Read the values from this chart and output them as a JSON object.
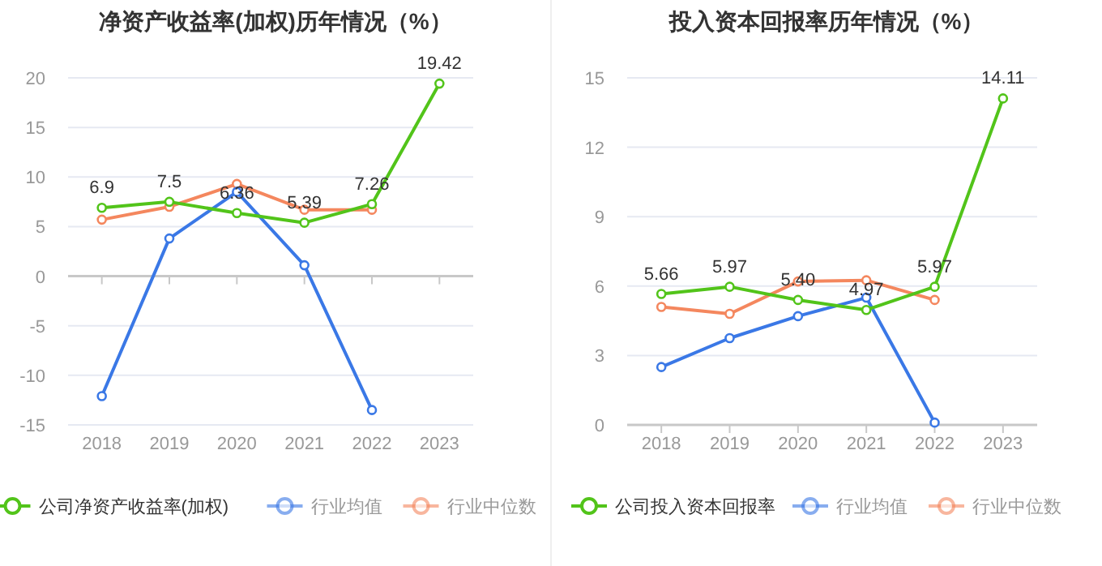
{
  "chart_data": [
    {
      "type": "line",
      "title": "净资产收益率(加权)历年情况（%）",
      "categories": [
        "2018",
        "2019",
        "2020",
        "2021",
        "2022",
        "2023"
      ],
      "ylim": [
        -15,
        20
      ],
      "yticks": [
        -15,
        -10,
        -5,
        0,
        5,
        10,
        15,
        20
      ],
      "grid": "y",
      "legend": "bottom",
      "marker": "circle",
      "line_style": "solid",
      "series": [
        {
          "name": "公司净资产收益率(加权)",
          "color": "#52c41a",
          "values": [
            6.9,
            7.5,
            6.36,
            5.39,
            7.26,
            19.42
          ],
          "value_labels": [
            "6.9",
            "7.5",
            "6.36",
            "5.39",
            "7.26",
            "19.42"
          ]
        },
        {
          "name": "行业均值",
          "color": "#3a78e6",
          "values": [
            -12.1,
            3.8,
            8.5,
            1.1,
            -13.5,
            null
          ]
        },
        {
          "name": "行业中位数",
          "color": "#f4875e",
          "values": [
            5.7,
            7.0,
            9.3,
            6.7,
            6.7,
            null
          ]
        }
      ]
    },
    {
      "type": "line",
      "title": "投入资本回报率历年情况（%）",
      "categories": [
        "2018",
        "2019",
        "2020",
        "2021",
        "2022",
        "2023"
      ],
      "ylim": [
        0,
        15
      ],
      "yticks": [
        0,
        3,
        6,
        9,
        12,
        15
      ],
      "grid": "y",
      "legend": "bottom",
      "marker": "circle",
      "line_style": "solid",
      "series": [
        {
          "name": "公司投入资本回报率",
          "color": "#52c41a",
          "values": [
            5.66,
            5.97,
            5.4,
            4.97,
            5.97,
            14.11
          ],
          "value_labels": [
            "5.66",
            "5.97",
            "5.40",
            "4.97",
            "5.97",
            "14.11"
          ]
        },
        {
          "name": "行业均值",
          "color": "#3a78e6",
          "values": [
            2.5,
            3.75,
            4.7,
            5.5,
            0.1,
            null
          ]
        },
        {
          "name": "行业中位数",
          "color": "#f4875e",
          "values": [
            5.1,
            4.8,
            6.2,
            6.25,
            5.4,
            null
          ]
        }
      ]
    }
  ]
}
